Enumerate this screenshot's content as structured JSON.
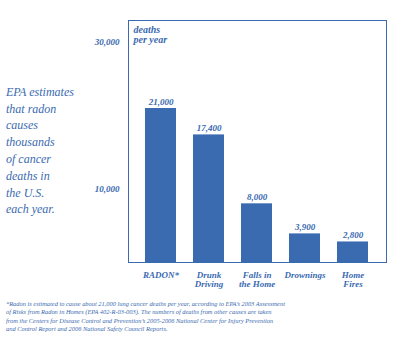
{
  "chart_data": {
    "type": "bar",
    "categories": [
      "RADON*",
      "Drunk\nDriving",
      "Falls in\nthe Home",
      "Drownings",
      "Home\nFires"
    ],
    "values": [
      21000,
      17400,
      8000,
      3900,
      2800
    ],
    "value_labels": [
      "21,000",
      "17,400",
      "8,000",
      "3,900",
      "2,800"
    ],
    "data_labels": true,
    "color": "#3A6AB0",
    "ylabel": "deaths\nper year",
    "ylim": [
      0,
      33000
    ],
    "yticks": [
      {
        "value": 10000,
        "label": "10,000"
      },
      {
        "value": 30000,
        "label": "30,000"
      }
    ],
    "grid": false,
    "annotations": [
      "EPA estimates\nthat radon\ncauses\nthousands\nof cancer\ndeaths in\nthe U.S.\neach year.",
      "*Radon is estimated to cause about 21,000 lung cancer deaths per year, according to EPA’s 2003 Assessment\nof Risks from Radon in Homes (EPA 402-R-03-003).  The numbers of deaths from other causes are taken\nfrom the Centers for Disease Control and Prevention’s 2005-2006 National Center for Injury Prevention\nand Control Report and 2006 National Safety Council Reports."
    ]
  }
}
